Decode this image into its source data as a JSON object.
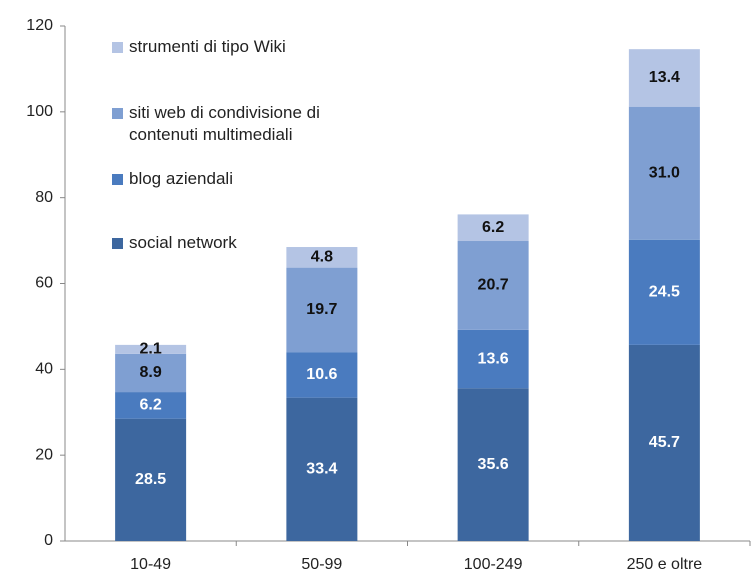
{
  "chart_data": {
    "type": "stacked_bar",
    "categories": [
      "10-49",
      "50-99",
      "100-249",
      "250 e oltre"
    ],
    "series": [
      {
        "name": "social network",
        "color": "#3d679f",
        "values": [
          28.5,
          33.4,
          35.6,
          45.7
        ],
        "value_labels": [
          "28.5",
          "33.4",
          "35.6",
          "45.7"
        ]
      },
      {
        "name": "blog aziendali",
        "color": "#4a7bbf",
        "values": [
          6.2,
          10.6,
          13.6,
          24.5
        ],
        "value_labels": [
          "6.2",
          "10.6",
          "13.6",
          "24.5"
        ]
      },
      {
        "name": "siti web di condivisione di contenuti multimediali",
        "color": "#7f9fd2",
        "values": [
          8.9,
          19.7,
          20.7,
          31.0
        ],
        "value_labels": [
          "8.9",
          "19.7",
          "20.7",
          "31.0"
        ]
      },
      {
        "name": "strumenti di tipo Wiki",
        "color": "#b4c4e4",
        "values": [
          2.1,
          4.8,
          6.2,
          13.4
        ],
        "value_labels": [
          "2.1",
          "4.8",
          "6.2",
          "13.4"
        ]
      }
    ],
    "ylim": [
      0,
      120
    ],
    "yticks": [
      0,
      20,
      40,
      60,
      80,
      100,
      120
    ],
    "grid": false
  }
}
